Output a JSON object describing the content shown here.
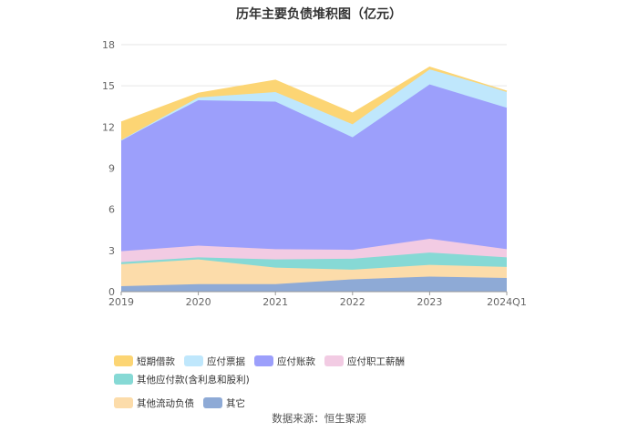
{
  "title": "历年主要负债堆积图（亿元）",
  "source": "数据来源：恒生聚源",
  "chart_data": {
    "type": "area",
    "stacked": true,
    "categories": [
      "2019",
      "2020",
      "2021",
      "2022",
      "2023",
      "2024Q1"
    ],
    "ylim": [
      0,
      18
    ],
    "yticks": [
      "0",
      "3",
      "6",
      "9",
      "12",
      "15",
      "18"
    ],
    "grid": true,
    "legend_position": "bottom",
    "series": [
      {
        "name": "其它",
        "color": "#8eaad6",
        "values": [
          0.4,
          0.55,
          0.55,
          0.9,
          1.1,
          1.0
        ]
      },
      {
        "name": "其他流动负债",
        "color": "#fcdcaa",
        "values": [
          1.6,
          1.8,
          1.2,
          0.7,
          0.85,
          0.8
        ]
      },
      {
        "name": "其他应付款(含利息和股利)",
        "color": "#86d9d5",
        "values": [
          0.15,
          0.15,
          0.6,
          0.8,
          0.9,
          0.7
        ]
      },
      {
        "name": "应付职工薪酬",
        "color": "#f2cbe3",
        "values": [
          0.8,
          0.85,
          0.75,
          0.65,
          1.0,
          0.6
        ]
      },
      {
        "name": "应付账款",
        "color": "#9c9ffb",
        "values": [
          8.1,
          10.6,
          10.75,
          8.2,
          11.25,
          10.3
        ]
      },
      {
        "name": "应付票据",
        "color": "#bfe7fc",
        "values": [
          0.0,
          0.2,
          0.7,
          0.95,
          1.1,
          1.2
        ]
      },
      {
        "name": "短期借款",
        "color": "#fcd574",
        "values": [
          1.3,
          0.3,
          0.85,
          0.8,
          0.15,
          0.0
        ]
      }
    ]
  },
  "legend_rows": [
    [
      {
        "label": "短期借款",
        "color": "#fcd574"
      },
      {
        "label": "应付票据",
        "color": "#bfe7fc"
      },
      {
        "label": "应付账款",
        "color": "#9c9ffb"
      },
      {
        "label": "应付职工薪酬",
        "color": "#f2cbe3"
      },
      {
        "label": "其他应付款(含利息和股利)",
        "color": "#86d9d5"
      }
    ],
    [
      {
        "label": "其他流动负债",
        "color": "#fcdcaa"
      },
      {
        "label": "其它",
        "color": "#8eaad6"
      }
    ]
  ]
}
